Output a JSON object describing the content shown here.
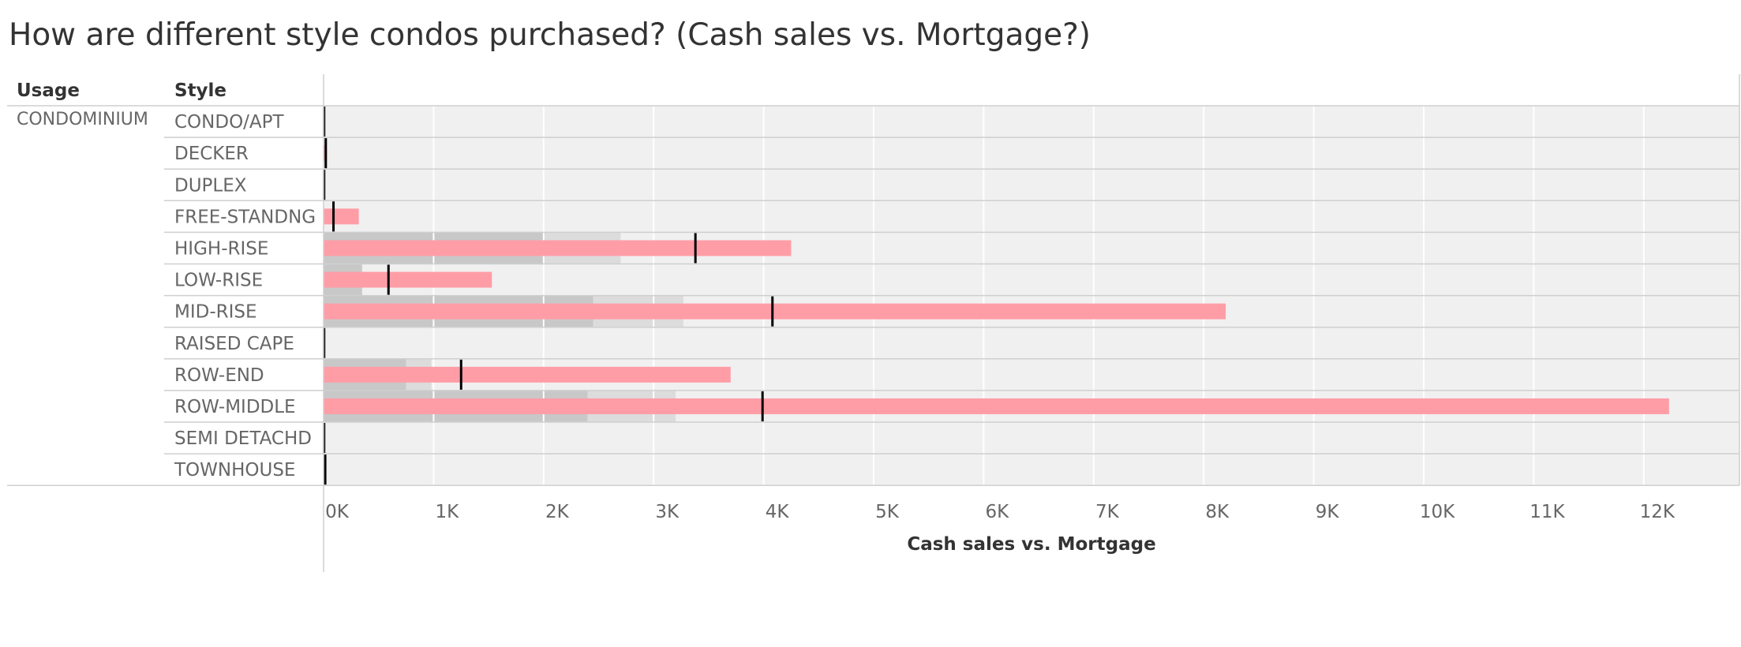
{
  "title": "How are different style condos purchased? (Cash sales vs. Mortgage?)",
  "headers": {
    "usage": "Usage",
    "style": "Style"
  },
  "usage_value": "CONDOMINIUM",
  "colors": {
    "bar": "#ff9da7",
    "reference_band_dark": "#c8c8c8",
    "reference_band_light": "#dcdcdc",
    "pane_background": "#f0f0f0",
    "reference_line": "#000000"
  },
  "chart_data": {
    "type": "bar",
    "orientation": "horizontal",
    "title": "How are different style condos purchased? (Cash sales vs. Mortgage?)",
    "xlabel": "Cash sales vs. Mortgage",
    "ylabel": "Style",
    "xlim": [
      0,
      12850
    ],
    "grid": true,
    "legend": "none",
    "x_ticks": [
      0,
      1000,
      2000,
      3000,
      4000,
      5000,
      6000,
      7000,
      8000,
      9000,
      10000,
      11000,
      12000
    ],
    "x_tick_labels": [
      "0K",
      "1K",
      "2K",
      "3K",
      "4K",
      "5K",
      "6K",
      "7K",
      "8K",
      "9K",
      "10K",
      "11K",
      "12K"
    ],
    "categories": [
      "CONDO/APT",
      "DECKER",
      "DUPLEX",
      "FREE-STANDNG",
      "HIGH-RISE",
      "LOW-RISE",
      "MID-RISE",
      "RAISED CAPE",
      "ROW-END",
      "ROW-MIDDLE",
      "SEMI DETACHD",
      "TOWNHOUSE"
    ],
    "values": [
      5,
      30,
      5,
      320,
      4250,
      1530,
      8200,
      5,
      3700,
      12230,
      5,
      15
    ],
    "reference_line": [
      5,
      20,
      5,
      90,
      3380,
      590,
      4080,
      5,
      1250,
      3990,
      5,
      15
    ],
    "reference_band_inner": [
      0,
      0,
      0,
      0,
      2000,
      350,
      2450,
      0,
      750,
      2400,
      0,
      0
    ],
    "reference_band_outer": [
      0,
      0,
      0,
      0,
      2700,
      350,
      3270,
      0,
      980,
      3200,
      0,
      0
    ]
  }
}
